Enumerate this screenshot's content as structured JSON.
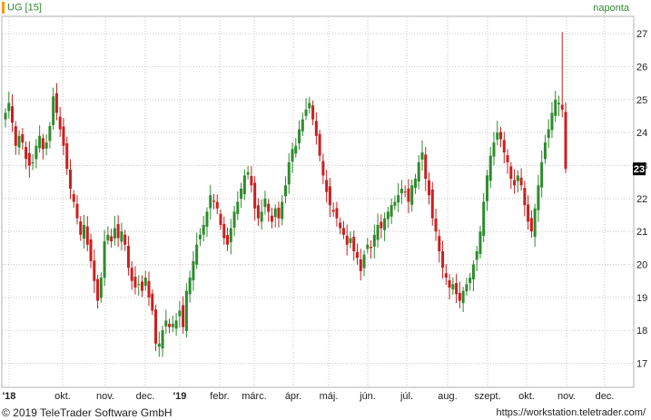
{
  "header": {
    "symbol": "UG [15]",
    "period": "naponta"
  },
  "brand": {
    "part1": "TeleTrader",
    "part2": "WorkStation"
  },
  "footer": {
    "copyright": "© 2019 TeleTrader Software GmbH",
    "url": "https://workstation.teletrader.com/"
  },
  "colors": {
    "up": "#2e8b2e",
    "down": "#cc1f1f",
    "grid": "#c8c8c8",
    "text": "#222222"
  },
  "chart_data": {
    "type": "candlestick",
    "title": "UG [15]",
    "period": "naponta",
    "y_ticks": [
      17,
      18,
      19,
      20,
      21,
      22,
      23,
      24,
      25,
      26,
      27
    ],
    "ylim": [
      16.3,
      27.5
    ],
    "x_tick_labels": [
      "'18",
      "okt.",
      "nov.",
      "dec.",
      "'19",
      "febr.",
      "márc.",
      "ápr.",
      "máj.",
      "jún.",
      "júl.",
      "aug.",
      "szept.",
      "okt.",
      "nov.",
      "dec."
    ],
    "x_tick_bold": [
      true,
      false,
      false,
      false,
      true,
      false,
      false,
      false,
      false,
      false,
      false,
      false,
      false,
      false,
      false,
      false
    ],
    "last_value": "23",
    "last_close": 22.9,
    "closes": [
      24.6,
      24.9,
      24.3,
      23.6,
      23.9,
      23.7,
      23.2,
      23.0,
      23.1,
      23.6,
      23.9,
      23.5,
      23.7,
      24.2,
      25.1,
      24.6,
      24.1,
      23.6,
      22.9,
      22.3,
      21.9,
      21.4,
      20.9,
      21.2,
      20.6,
      20.1,
      19.5,
      18.9,
      19.6,
      20.7,
      20.9,
      20.7,
      21.1,
      20.8,
      21.0,
      20.6,
      19.9,
      19.5,
      19.3,
      19.4,
      19.2,
      19.6,
      19.0,
      18.6,
      17.6,
      17.6,
      18.0,
      18.3,
      18.1,
      18.2,
      18.3,
      18.6,
      18.1,
      19.2,
      19.6,
      20.1,
      20.6,
      20.9,
      21.2,
      21.6,
      22.1,
      21.9,
      21.7,
      21.2,
      20.8,
      20.6,
      21.1,
      21.6,
      21.9,
      22.3,
      22.7,
      22.8,
      22.4,
      21.7,
      21.4,
      21.6,
      22.0,
      21.6,
      21.3,
      21.7,
      21.4,
      21.9,
      22.4,
      23.1,
      23.5,
      23.6,
      24.1,
      24.4,
      24.7,
      24.9,
      24.4,
      23.9,
      23.3,
      22.7,
      22.2,
      21.8,
      21.6,
      21.4,
      21.1,
      20.9,
      20.6,
      20.8,
      20.4,
      20.2,
      19.8,
      20.3,
      20.6,
      20.5,
      20.9,
      21.2,
      21.1,
      21.4,
      21.6,
      21.8,
      21.9,
      22.1,
      22.3,
      22.2,
      21.9,
      22.4,
      22.6,
      23.1,
      23.4,
      22.6,
      22.1,
      21.4,
      21.0,
      20.4,
      19.9,
      19.6,
      19.3,
      19.4,
      19.1,
      18.9,
      19.2,
      19.4,
      19.6,
      20.0,
      20.4,
      21.0,
      21.9,
      22.7,
      23.3,
      23.7,
      24.0,
      23.8,
      23.4,
      23.1,
      22.6,
      22.4,
      22.7,
      22.4,
      21.8,
      21.3,
      21.0,
      21.7,
      22.4,
      23.1,
      23.7,
      24.1,
      24.6,
      25.0,
      24.9,
      24.7,
      22.9
    ]
  }
}
